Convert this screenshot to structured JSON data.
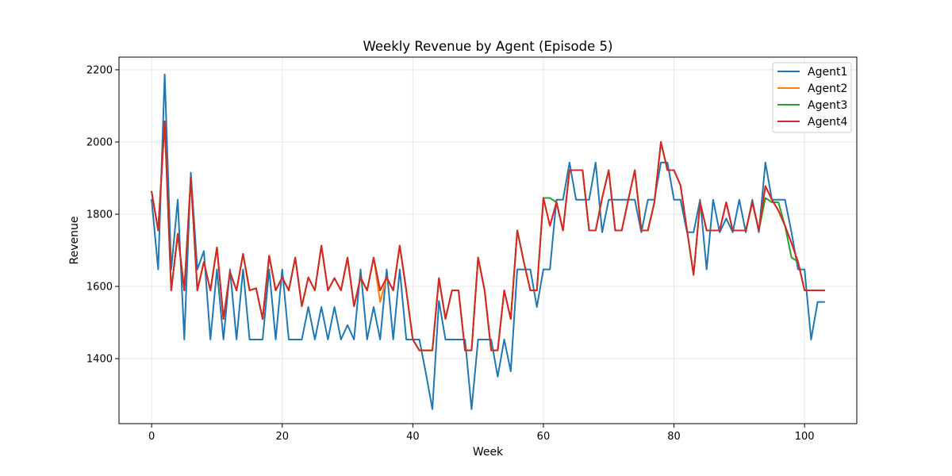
{
  "chart_data": {
    "type": "line",
    "title": "Weekly Revenue by Agent (Episode 5)",
    "xlabel": "Week",
    "ylabel": "Revenue",
    "xlim": [
      -5,
      108
    ],
    "ylim": [
      1220,
      2235
    ],
    "xticks": [
      0,
      20,
      40,
      60,
      80,
      100
    ],
    "yticks": [
      1400,
      1600,
      1800,
      2000,
      2200
    ],
    "grid": true,
    "legend_position": "top-right",
    "series": [
      {
        "name": "Agent1",
        "color": "#1f77b4",
        "values": [
          1840,
          1647,
          2187,
          1647,
          1840,
          1453,
          1915,
          1647,
          1698,
          1453,
          1647,
          1453,
          1647,
          1453,
          1647,
          1453,
          1453,
          1453,
          1647,
          1453,
          1647,
          1453,
          1453,
          1453,
          1543,
          1453,
          1543,
          1453,
          1543,
          1453,
          1493,
          1453,
          1647,
          1453,
          1543,
          1453,
          1647,
          1453,
          1647,
          1453,
          1453,
          1453,
          1360,
          1260,
          1560,
          1453,
          1453,
          1453,
          1453,
          1260,
          1453,
          1453,
          1453,
          1350,
          1453,
          1365,
          1647,
          1647,
          1647,
          1543,
          1647,
          1647,
          1840,
          1840,
          1943,
          1840,
          1840,
          1840,
          1943,
          1750,
          1840,
          1840,
          1840,
          1840,
          1840,
          1750,
          1840,
          1840,
          1943,
          1943,
          1840,
          1840,
          1750,
          1750,
          1840,
          1647,
          1840,
          1750,
          1788,
          1750,
          1840,
          1750,
          1840,
          1750,
          1943,
          1840,
          1840,
          1840,
          1750,
          1647,
          1647,
          1453,
          1557,
          1557
        ]
      },
      {
        "name": "Agent2",
        "color": "#ff7f0e",
        "values": [
          1862,
          1755,
          2057,
          1589,
          1746,
          1589,
          1902,
          1589,
          1668,
          1589,
          1708,
          1510,
          1640,
          1589,
          1690,
          1589,
          1595,
          1510,
          1685,
          1589,
          1625,
          1589,
          1680,
          1545,
          1625,
          1589,
          1713,
          1589,
          1623,
          1589,
          1680,
          1545,
          1625,
          1589,
          1680,
          1557,
          1625,
          1589,
          1713,
          1589,
          1453,
          1423,
          1423,
          1423,
          1623,
          1510,
          1589,
          1589,
          1423,
          1423,
          1680,
          1589,
          1423,
          1423,
          1589,
          1510,
          1755,
          1668,
          1589,
          1589,
          1845,
          1768,
          1833,
          1755,
          1922,
          1922,
          1922,
          1755,
          1755,
          1845,
          1922,
          1755,
          1755,
          1840,
          1922,
          1755,
          1755,
          1833,
          2000,
          1922,
          1922,
          1880,
          1755,
          1632,
          1833,
          1755,
          1755,
          1755,
          1833,
          1755,
          1755,
          1755,
          1833,
          1755,
          1878,
          1840,
          1810,
          1768,
          1720,
          1668,
          1589,
          1589,
          1589,
          1589
        ]
      },
      {
        "name": "Agent3",
        "color": "#2ca02c",
        "values": [
          1862,
          1755,
          2057,
          1589,
          1746,
          1589,
          1902,
          1589,
          1668,
          1589,
          1708,
          1510,
          1640,
          1589,
          1690,
          1589,
          1595,
          1510,
          1685,
          1589,
          1625,
          1589,
          1680,
          1545,
          1625,
          1589,
          1713,
          1589,
          1623,
          1589,
          1680,
          1545,
          1625,
          1589,
          1680,
          1589,
          1625,
          1589,
          1713,
          1589,
          1453,
          1423,
          1423,
          1423,
          1623,
          1510,
          1589,
          1589,
          1423,
          1423,
          1680,
          1589,
          1423,
          1423,
          1589,
          1510,
          1755,
          1668,
          1589,
          1589,
          1845,
          1845,
          1833,
          1755,
          1922,
          1922,
          1922,
          1755,
          1755,
          1845,
          1922,
          1755,
          1755,
          1840,
          1922,
          1755,
          1755,
          1833,
          2000,
          1922,
          1922,
          1880,
          1755,
          1632,
          1833,
          1755,
          1755,
          1755,
          1833,
          1755,
          1755,
          1755,
          1833,
          1755,
          1845,
          1833,
          1833,
          1768,
          1680,
          1668,
          1589,
          1589,
          1589,
          1589
        ]
      },
      {
        "name": "Agent4",
        "color": "#d62728",
        "values": [
          1862,
          1755,
          2057,
          1589,
          1746,
          1589,
          1902,
          1589,
          1668,
          1589,
          1708,
          1510,
          1640,
          1589,
          1690,
          1589,
          1595,
          1510,
          1685,
          1589,
          1625,
          1589,
          1680,
          1545,
          1625,
          1589,
          1713,
          1589,
          1623,
          1589,
          1680,
          1545,
          1625,
          1589,
          1680,
          1589,
          1625,
          1589,
          1713,
          1589,
          1453,
          1423,
          1423,
          1423,
          1623,
          1510,
          1589,
          1589,
          1423,
          1423,
          1680,
          1589,
          1423,
          1423,
          1589,
          1510,
          1755,
          1668,
          1589,
          1589,
          1845,
          1768,
          1833,
          1755,
          1922,
          1922,
          1922,
          1755,
          1755,
          1845,
          1922,
          1755,
          1755,
          1840,
          1922,
          1755,
          1755,
          1833,
          2000,
          1922,
          1922,
          1880,
          1755,
          1632,
          1833,
          1755,
          1755,
          1755,
          1833,
          1755,
          1755,
          1755,
          1833,
          1755,
          1878,
          1840,
          1810,
          1768,
          1720,
          1668,
          1589,
          1589,
          1589,
          1589
        ]
      }
    ]
  }
}
